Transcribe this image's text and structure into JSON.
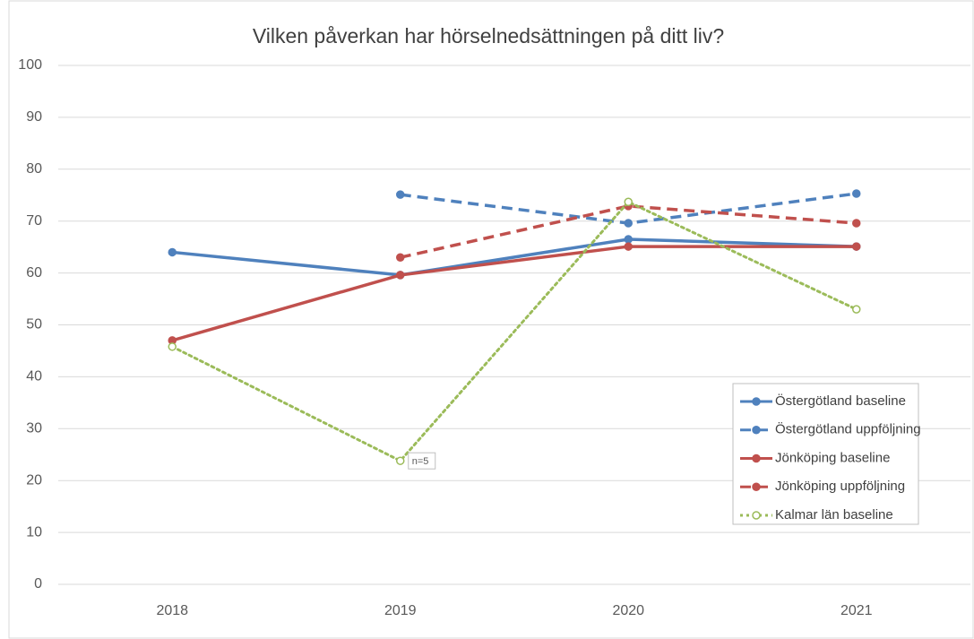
{
  "chart_data": {
    "type": "line",
    "title": "Vilken påverkan har hörselnedsättningen på ditt liv?",
    "categories": [
      "2018",
      "2019",
      "2020",
      "2021"
    ],
    "series": [
      {
        "name": "Östergötland baseline",
        "color": "#4f81bd",
        "dash": "solid",
        "marker": "filled",
        "values": [
          64,
          59.6,
          66.5,
          65.1
        ]
      },
      {
        "name": "Östergötland uppföljning",
        "color": "#4f81bd",
        "dash": "dashed",
        "marker": "filled",
        "values": [
          null,
          75.1,
          69.6,
          75.3
        ]
      },
      {
        "name": "Jönköping baseline",
        "color": "#c0504d",
        "dash": "solid",
        "marker": "filled",
        "values": [
          47,
          59.6,
          65.1,
          65.1
        ]
      },
      {
        "name": "Jönköping uppföljning",
        "color": "#c0504d",
        "dash": "dashed",
        "marker": "filled",
        "values": [
          null,
          63,
          72.9,
          69.6
        ]
      },
      {
        "name": "Kalmar län baseline",
        "color": "#9bbb59",
        "dash": "dotted",
        "marker": "hollow",
        "values": [
          45.8,
          23.8,
          73.7,
          53
        ]
      }
    ],
    "annotations": [
      {
        "text": "n=5",
        "category": "2019",
        "series": "Kalmar län baseline"
      }
    ],
    "ylim": [
      0,
      100
    ],
    "yticks": [
      0,
      10,
      20,
      30,
      40,
      50,
      60,
      70,
      80,
      90,
      100
    ],
    "grid": true,
    "legend": "lower right"
  }
}
